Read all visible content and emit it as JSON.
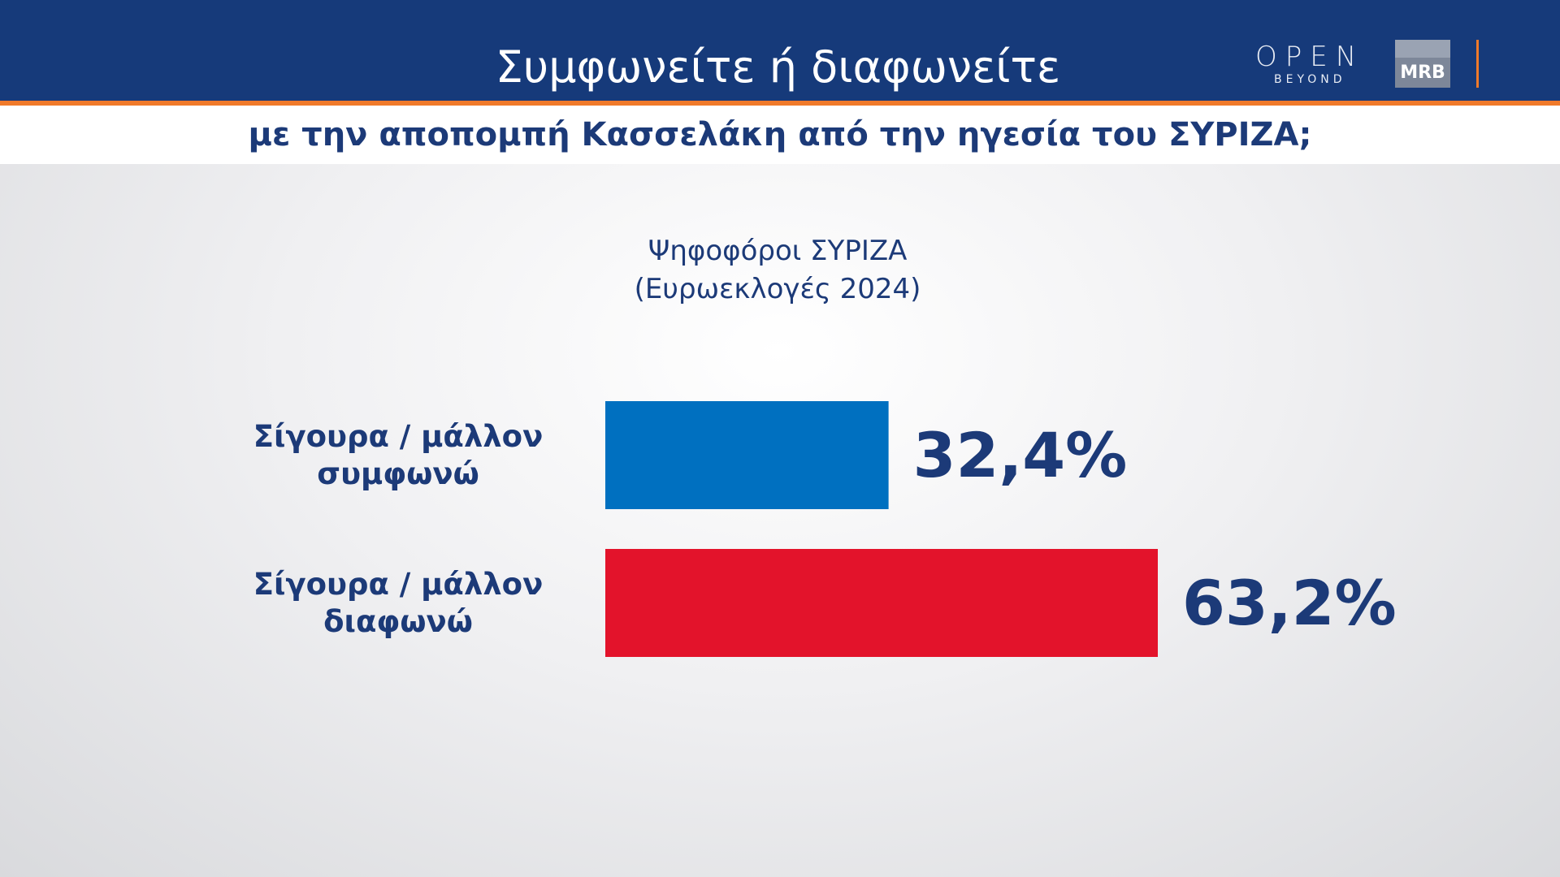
{
  "header": {
    "title": "Συμφωνείτε ή διαφωνείτε",
    "subtitle": "με την αποπομπή Κασσελάκη από την ηγεσία του ΣΥΡΙΖΑ;",
    "logo_open": "OPEN",
    "logo_beyond": "BEYOND",
    "logo_mrb": "MRB"
  },
  "chart_data": {
    "type": "bar",
    "orientation": "horizontal",
    "group_label": [
      "Ψηφοφόροι ΣΥΡΙΖΑ",
      "(Ευρωεκλογές 2024)"
    ],
    "categories": [
      "Σίγουρα / μάλλον συμφωνώ",
      "Σίγουρα / μάλλον διαφωνώ"
    ],
    "values": [
      32.4,
      63.2
    ],
    "value_labels": [
      "32,4%",
      "63,2%"
    ],
    "colors": [
      "#0070c0",
      "#e3132b"
    ]
  }
}
